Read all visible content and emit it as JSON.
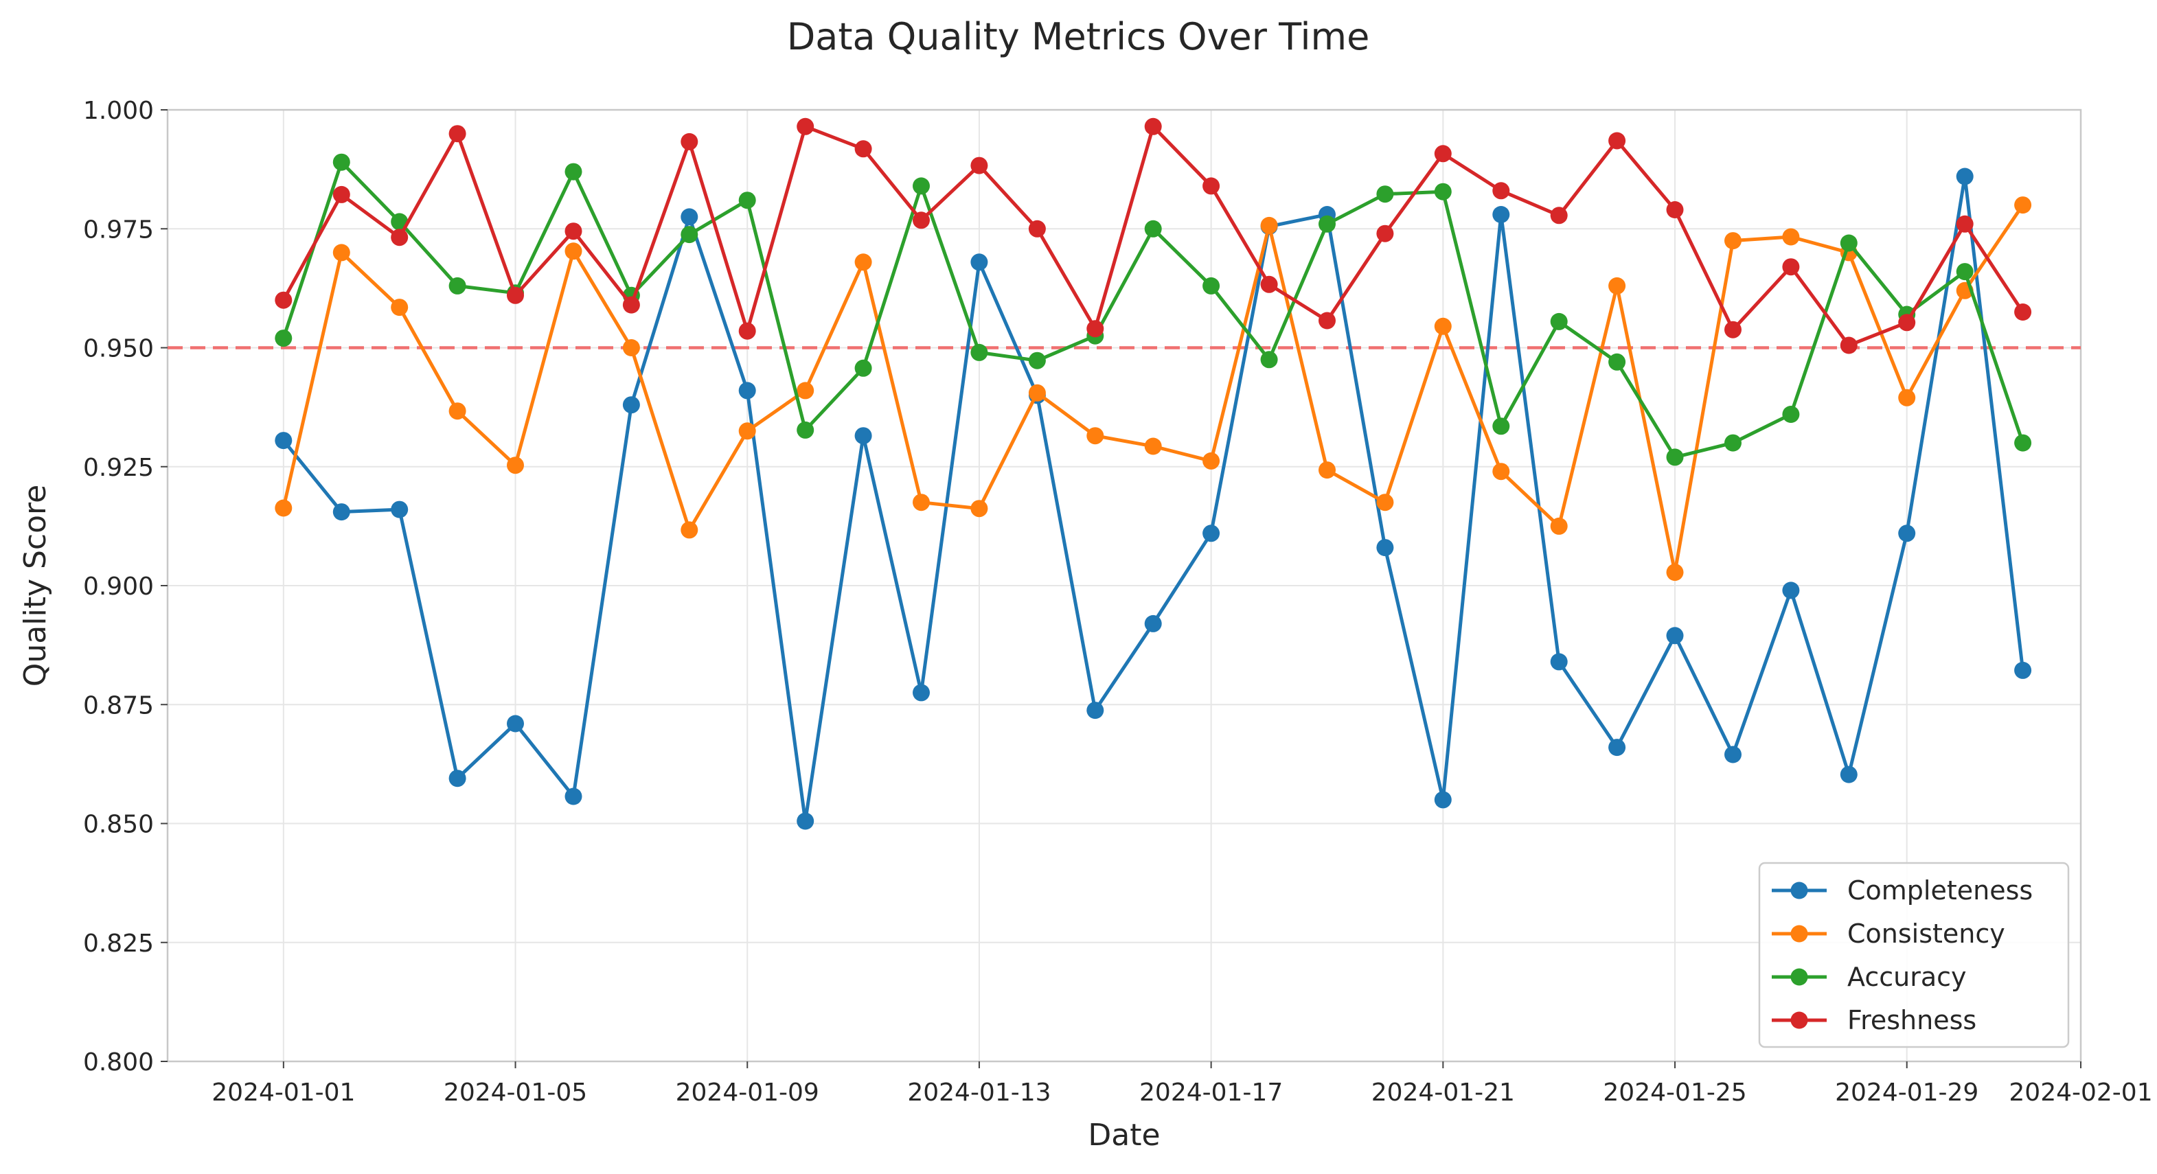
{
  "chart_data": {
    "type": "line",
    "title": "Data Quality Metrics Over Time",
    "xlabel": "Date",
    "ylabel": "Quality Score",
    "ylim": [
      0.8,
      1.0
    ],
    "xlim": [
      "2023-12-30",
      "2024-02-01"
    ],
    "y_ticks": [
      "0.800",
      "0.825",
      "0.850",
      "0.875",
      "0.900",
      "0.925",
      "0.950",
      "0.975",
      "1.000"
    ],
    "x_ticks": [
      "2024-01-01",
      "2024-01-05",
      "2024-01-09",
      "2024-01-13",
      "2024-01-17",
      "2024-01-21",
      "2024-01-25",
      "2024-01-29",
      "2024-02-01"
    ],
    "grid": true,
    "legend_position": "bottom-right",
    "threshold": {
      "value": 0.95,
      "color": "#f07070",
      "style": "dashed"
    },
    "x": [
      "2024-01-01",
      "2024-01-02",
      "2024-01-03",
      "2024-01-04",
      "2024-01-05",
      "2024-01-06",
      "2024-01-07",
      "2024-01-08",
      "2024-01-09",
      "2024-01-10",
      "2024-01-11",
      "2024-01-12",
      "2024-01-13",
      "2024-01-14",
      "2024-01-15",
      "2024-01-16",
      "2024-01-17",
      "2024-01-18",
      "2024-01-19",
      "2024-01-20",
      "2024-01-21",
      "2024-01-22",
      "2024-01-23",
      "2024-01-24",
      "2024-01-25",
      "2024-01-26",
      "2024-01-27",
      "2024-01-28",
      "2024-01-29",
      "2024-01-30",
      "2024-01-31"
    ],
    "series": [
      {
        "name": "Completeness",
        "color": "#1f77b4",
        "values": [
          0.9305,
          0.9155,
          0.916,
          0.8595,
          0.871,
          0.8557,
          0.938,
          0.9775,
          0.941,
          0.8505,
          0.9315,
          0.8775,
          0.968,
          0.94,
          0.8738,
          0.892,
          0.911,
          0.9755,
          0.978,
          0.908,
          0.855,
          0.978,
          0.884,
          0.866,
          0.8895,
          0.8645,
          0.899,
          0.8603,
          0.911,
          0.986,
          0.8822
        ]
      },
      {
        "name": "Consistency",
        "color": "#ff7f0e",
        "values": [
          0.9163,
          0.97,
          0.9585,
          0.9367,
          0.9253,
          0.9703,
          0.95,
          0.9117,
          0.9325,
          0.941,
          0.968,
          0.9175,
          0.9162,
          0.9405,
          0.9315,
          0.9293,
          0.9262,
          0.9757,
          0.9243,
          0.9175,
          0.9545,
          0.924,
          0.9125,
          0.963,
          0.9028,
          0.9725,
          0.9733,
          0.97,
          0.9395,
          0.962,
          0.98
        ]
      },
      {
        "name": "Accuracy",
        "color": "#2ca02c",
        "values": [
          0.952,
          0.989,
          0.9765,
          0.963,
          0.9615,
          0.987,
          0.961,
          0.9738,
          0.981,
          0.9327,
          0.9457,
          0.984,
          0.949,
          0.9473,
          0.9525,
          0.975,
          0.963,
          0.9475,
          0.976,
          0.9823,
          0.9828,
          0.9335,
          0.9555,
          0.947,
          0.927,
          0.93,
          0.936,
          0.972,
          0.957,
          0.966,
          0.93
        ]
      },
      {
        "name": "Freshness",
        "color": "#d62728",
        "values": [
          0.96,
          0.9822,
          0.9732,
          0.995,
          0.961,
          0.9745,
          0.959,
          0.9933,
          0.9535,
          0.9965,
          0.9918,
          0.9768,
          0.9883,
          0.975,
          0.954,
          0.9965,
          0.984,
          0.9633,
          0.9557,
          0.974,
          0.9908,
          0.983,
          0.9778,
          0.9935,
          0.979,
          0.9538,
          0.967,
          0.9505,
          0.9553,
          0.976,
          0.9575
        ]
      }
    ]
  }
}
